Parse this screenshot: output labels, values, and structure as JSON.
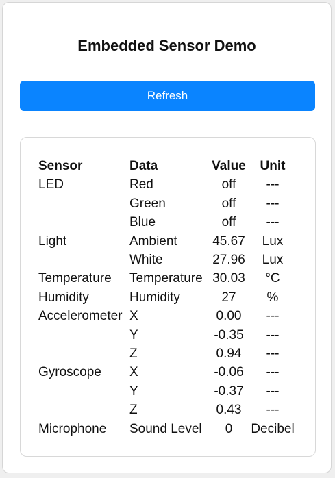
{
  "page": {
    "title": "Embedded Sensor Demo",
    "refresh_label": "Refresh"
  },
  "colors": {
    "accent": "#0a84ff",
    "background": "#efefef",
    "card": "#ffffff"
  },
  "table": {
    "headers": [
      "Sensor",
      "Data",
      "Value",
      "Unit"
    ],
    "rows": [
      [
        "LED",
        "Red",
        "off",
        "---"
      ],
      [
        "",
        "Green",
        "off",
        "---"
      ],
      [
        "",
        "Blue",
        "off",
        "---"
      ],
      [
        "Light",
        "Ambient",
        "45.67",
        "Lux"
      ],
      [
        "",
        "White",
        "27.96",
        "Lux"
      ],
      [
        "Temperature",
        "Temperature",
        "30.03",
        "°C"
      ],
      [
        "Humidity",
        "Humidity",
        "27",
        "%"
      ],
      [
        "Accelerometer",
        "X",
        "0.00",
        "---"
      ],
      [
        "",
        "Y",
        "-0.35",
        "---"
      ],
      [
        "",
        "Z",
        "0.94",
        "---"
      ],
      [
        "Gyroscope",
        "X",
        "-0.06",
        "---"
      ],
      [
        "",
        "Y",
        "-0.37",
        "---"
      ],
      [
        "",
        "Z",
        "0.43",
        "---"
      ],
      [
        "Microphone",
        "Sound Level",
        "0",
        "Decibel"
      ]
    ]
  }
}
